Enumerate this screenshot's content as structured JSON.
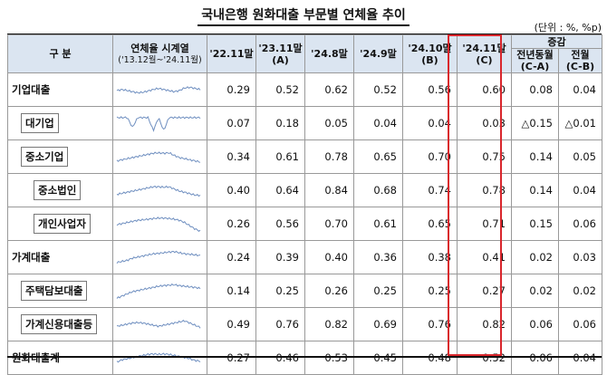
{
  "title": "국내은행 원화대출 부문별 연체율 추이",
  "unit": "(단위 : %, %p)",
  "headers": {
    "category": "구 분",
    "series": "연체율 시계열",
    "series_range": "('13.12월~'24.11월)",
    "col_2211": "'22.11말",
    "col_2311": "'23.11말",
    "col_2311_tag": "(A)",
    "col_2408": "'24.8말",
    "col_2409": "'24.9말",
    "col_2410": "'24.10말",
    "col_2410_tag": "(B)",
    "col_2411": "'24.11말",
    "col_2411_tag": "(C)",
    "change": "증감",
    "yoy": "전년동월",
    "yoy_tag": "(C-A)",
    "mom": "전월",
    "mom_tag": "(C-B)"
  },
  "rows": [
    {
      "label": "기업대출",
      "level": 0,
      "v2211": "0.29",
      "v2311": "0.52",
      "v2408": "0.62",
      "v2409": "0.52",
      "v2410": "0.56",
      "v2411": "0.60",
      "yoy": "0.08",
      "mom": "0.04"
    },
    {
      "label": "대기업",
      "level": 1,
      "v2211": "0.07",
      "v2311": "0.18",
      "v2408": "0.05",
      "v2409": "0.04",
      "v2410": "0.04",
      "v2411": "0.03",
      "yoy": "△0.15",
      "mom": "△0.01"
    },
    {
      "label": "중소기업",
      "level": 1,
      "v2211": "0.34",
      "v2311": "0.61",
      "v2408": "0.78",
      "v2409": "0.65",
      "v2410": "0.70",
      "v2411": "0.75",
      "yoy": "0.14",
      "mom": "0.05"
    },
    {
      "label": "중소법인",
      "level": 2,
      "v2211": "0.40",
      "v2311": "0.64",
      "v2408": "0.84",
      "v2409": "0.68",
      "v2410": "0.74",
      "v2411": "0.78",
      "yoy": "0.14",
      "mom": "0.04"
    },
    {
      "label": "개인사업자",
      "level": 2,
      "v2211": "0.26",
      "v2311": "0.56",
      "v2408": "0.70",
      "v2409": "0.61",
      "v2410": "0.65",
      "v2411": "0.71",
      "yoy": "0.15",
      "mom": "0.06"
    },
    {
      "label": "가계대출",
      "level": 0,
      "v2211": "0.24",
      "v2311": "0.39",
      "v2408": "0.40",
      "v2409": "0.36",
      "v2410": "0.38",
      "v2411": "0.41",
      "yoy": "0.02",
      "mom": "0.03"
    },
    {
      "label": "주택담보대출",
      "level": 1,
      "v2211": "0.14",
      "v2311": "0.25",
      "v2408": "0.26",
      "v2409": "0.25",
      "v2410": "0.25",
      "v2411": "0.27",
      "yoy": "0.02",
      "mom": "0.02"
    },
    {
      "label": "가계신용대출등",
      "level": 1,
      "v2211": "0.49",
      "v2311": "0.76",
      "v2408": "0.82",
      "v2409": "0.69",
      "v2410": "0.76",
      "v2411": "0.82",
      "yoy": "0.06",
      "mom": "0.06"
    },
    {
      "label": "원화대출계",
      "level": 0,
      "v2211": "0.27",
      "v2311": "0.46",
      "v2408": "0.53",
      "v2409": "0.45",
      "v2410": "0.48",
      "v2411": "0.52",
      "yoy": "0.06",
      "mom": "0.04"
    }
  ],
  "spark_color": "#6f8fc0",
  "highlight_color": "#d9262c"
}
